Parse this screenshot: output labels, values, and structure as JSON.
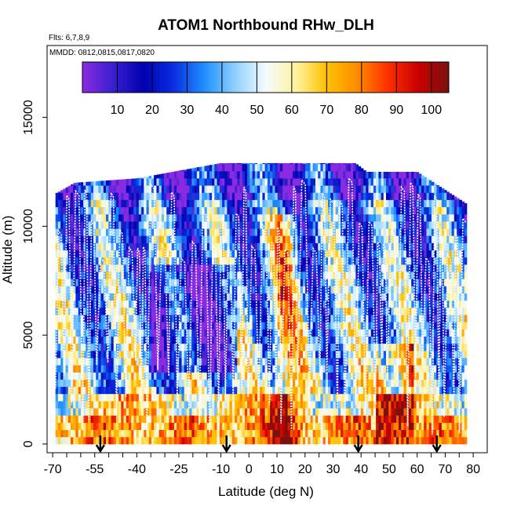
{
  "chart_data": {
    "type": "heatmap",
    "title": "ATOM1 Northbound RHw_DLH",
    "flights_text": "Flts: 6,7,8,9",
    "dates_text": "MMDD: 0812,0815,0817,0820",
    "xlabel": "Latitude (deg N)",
    "ylabel": "Altitude (m)",
    "x_ticks": [
      -70,
      -55,
      -40,
      -25,
      -10,
      0,
      10,
      20,
      30,
      40,
      50,
      60,
      70,
      80
    ],
    "x_tick_labels": [
      "-70",
      "-55",
      "-40",
      "-25",
      "-10",
      "0",
      "10",
      "20",
      "30",
      "40",
      "50",
      "60",
      "70",
      "80"
    ],
    "x_minor_ticks": [
      -65,
      -60,
      -50,
      -45,
      -35,
      -30,
      -20,
      -15,
      -5,
      5,
      15,
      25,
      35,
      45,
      55,
      65,
      75
    ],
    "y_ticks": [
      0,
      5000,
      10000,
      15000
    ],
    "y_tick_labels": [
      "0",
      "5000",
      "10000",
      "15000"
    ],
    "xlim": [
      -72,
      85
    ],
    "ylim": [
      -400,
      18300
    ],
    "colorbar": {
      "ticks": [
        10,
        20,
        30,
        40,
        50,
        60,
        70,
        80,
        90,
        100
      ],
      "tick_labels": [
        "10",
        "20",
        "30",
        "40",
        "50",
        "60",
        "70",
        "80",
        "90",
        "100"
      ],
      "range": [
        0,
        105
      ],
      "colors": [
        "#8a2be2",
        "#3a1fd0",
        "#0000b0",
        "#0a2ee0",
        "#1e90ff",
        "#8fd0ff",
        "#f5fbff",
        "#fff3a0",
        "#ffc000",
        "#ff8c00",
        "#ff3000",
        "#c80000",
        "#7a1010"
      ]
    },
    "flight_track_color": "#ffffff",
    "arrow_markers_lat": [
      -53,
      -8,
      39,
      67
    ],
    "altitude_top_by_lat": [
      {
        "lat": -69,
        "alt": 11500
      },
      {
        "lat": -62,
        "alt": 12000
      },
      {
        "lat": -40,
        "alt": 12200
      },
      {
        "lat": -10,
        "alt": 12900
      },
      {
        "lat": 10,
        "alt": 12900
      },
      {
        "lat": 38,
        "alt": 12900
      },
      {
        "lat": 42,
        "alt": 12500
      },
      {
        "lat": 60,
        "alt": 12500
      },
      {
        "lat": 78,
        "alt": 11000
      }
    ]
  }
}
